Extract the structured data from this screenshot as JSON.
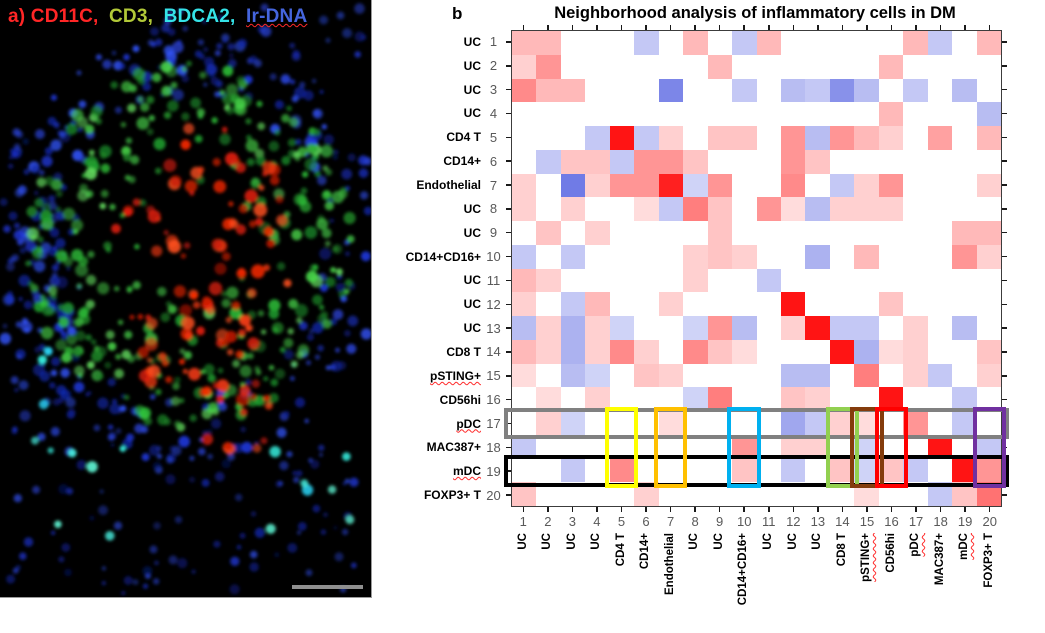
{
  "panel_a": {
    "label_parts": [
      {
        "text": "a) CD11C,",
        "color": "#ff2626",
        "squiggle": false
      },
      {
        "text": "CD3,",
        "color": "#b2c938",
        "squiggle": false
      },
      {
        "text": "BDCA2,",
        "color": "#35e3e8",
        "squiggle": false
      },
      {
        "text": "Ir-DNA",
        "color": "#4565dd",
        "squiggle": true
      }
    ],
    "scale_bar_color": "#8f8f8f"
  },
  "panel_b": {
    "panel_letter": "b",
    "title": "Neighborhood analysis of inflammatory cells in DM",
    "squiggled_labels": [
      "pSTING+",
      "pDC",
      "mDC"
    ],
    "highlights": {
      "row_boxes": [
        {
          "index": 17,
          "color": "#808080"
        },
        {
          "index": 19,
          "color": "#000000"
        }
      ],
      "col_boxes": [
        {
          "index": 5,
          "color": "#ffff00"
        },
        {
          "index": 7,
          "color": "#ffc000"
        },
        {
          "index": 10,
          "color": "#00b0f0"
        },
        {
          "index": 14,
          "color": "#92d050"
        },
        {
          "index": 15,
          "color": "#843c0c"
        },
        {
          "index": 16,
          "color": "#ff0000"
        },
        {
          "index": 20,
          "color": "#7030a0"
        }
      ]
    },
    "chart_data": {
      "type": "heatmap",
      "title": "Neighborhood analysis of inflammatory cells in DM",
      "x_categories": [
        "UC",
        "UC",
        "UC",
        "UC",
        "CD4 T",
        "CD14+",
        "Endothelial",
        "UC",
        "UC",
        "CD14+CD16+",
        "UC",
        "UC",
        "UC",
        "CD8 T",
        "pSTING+",
        "CD56hi",
        "pDC",
        "MAC387+",
        "mDC",
        "FOXP3+ T"
      ],
      "y_categories": [
        "UC",
        "UC",
        "UC",
        "UC",
        "CD4 T",
        "CD14+",
        "Endothelial",
        "UC",
        "UC",
        "CD14+CD16+",
        "UC",
        "UC",
        "UC",
        "CD8 T",
        "pSTING+",
        "CD56hi",
        "pDC",
        "MAC387+",
        "mDC",
        "FOXP3+ T"
      ],
      "x_ticks": [
        1,
        2,
        3,
        4,
        5,
        6,
        7,
        8,
        9,
        10,
        11,
        12,
        13,
        14,
        15,
        16,
        17,
        18,
        19,
        20
      ],
      "y_ticks": [
        1,
        2,
        3,
        4,
        5,
        6,
        7,
        8,
        9,
        10,
        11,
        12,
        13,
        14,
        15,
        16,
        17,
        18,
        19,
        20
      ],
      "value_range": [
        -1,
        1
      ],
      "colormap": {
        "positive": "red",
        "zero": "white",
        "negative": "blue"
      },
      "matrix": [
        [
          0.3,
          0.3,
          0,
          0,
          0,
          -0.25,
          0,
          0.3,
          0,
          -0.25,
          0.3,
          0,
          0,
          0,
          0,
          0,
          0.3,
          -0.25,
          0,
          0.3
        ],
        [
          0.2,
          0.45,
          0,
          0,
          0,
          0,
          0,
          0,
          0.3,
          0,
          0,
          0,
          0,
          0,
          0,
          0.3,
          0,
          0,
          0,
          0
        ],
        [
          0.5,
          0.3,
          0.3,
          0,
          0,
          0,
          -0.55,
          0,
          0,
          -0.25,
          0,
          -0.3,
          -0.25,
          -0.5,
          -0.3,
          0,
          -0.25,
          0,
          -0.3,
          0
        ],
        [
          0,
          0,
          0,
          0,
          0,
          0,
          0,
          0,
          0,
          0,
          0,
          0,
          0,
          0,
          0,
          0.3,
          0,
          0,
          0,
          -0.3
        ],
        [
          0,
          0,
          0,
          -0.25,
          1,
          -0.25,
          0.2,
          0,
          0.25,
          0.25,
          0,
          0.45,
          -0.3,
          0.45,
          0.3,
          0.2,
          0,
          0.4,
          0,
          0.3
        ],
        [
          0,
          -0.25,
          0.25,
          0.25,
          -0.25,
          0.45,
          0.45,
          0.25,
          0,
          0,
          0,
          0.45,
          0.25,
          0,
          0,
          0,
          0,
          0,
          0,
          0
        ],
        [
          0.2,
          0,
          -0.6,
          0.2,
          0.45,
          0.45,
          0.95,
          -0.2,
          0.45,
          0,
          0,
          0.5,
          0,
          -0.25,
          0.2,
          0.45,
          0,
          0,
          0,
          0.2
        ],
        [
          0.2,
          0,
          0.2,
          0,
          0,
          0.15,
          -0.25,
          0.55,
          0.25,
          0,
          0.45,
          0.15,
          -0.3,
          0.2,
          0.2,
          0.2,
          0,
          0,
          0,
          0
        ],
        [
          0,
          0.25,
          0,
          0.2,
          0,
          0,
          0,
          0,
          0.25,
          0,
          0,
          0,
          0,
          0,
          0,
          0,
          0,
          0,
          0.3,
          0.3
        ],
        [
          -0.25,
          0,
          -0.25,
          0,
          0,
          0,
          0,
          0.2,
          0.25,
          0.2,
          0,
          0,
          -0.35,
          0,
          0.3,
          0,
          0,
          0,
          0.45,
          0.2
        ],
        [
          0.3,
          0.2,
          0,
          0,
          0,
          0,
          0,
          0.2,
          0,
          0,
          -0.25,
          0,
          0,
          0,
          0,
          0,
          0,
          0,
          0,
          0
        ],
        [
          0.2,
          0,
          -0.25,
          0.3,
          0,
          0,
          0.2,
          0,
          0,
          0,
          0,
          1,
          0,
          0,
          0,
          0.25,
          0,
          0,
          0,
          0
        ],
        [
          -0.3,
          0.2,
          -0.35,
          0.2,
          -0.2,
          0,
          0,
          -0.2,
          0.45,
          -0.3,
          0,
          0.2,
          1,
          -0.25,
          -0.25,
          0,
          0.2,
          0,
          -0.3,
          0
        ],
        [
          0.3,
          0.2,
          -0.35,
          0.2,
          0.5,
          0.2,
          0,
          0.5,
          0.25,
          0.15,
          0,
          0,
          0,
          1,
          -0.35,
          0.15,
          0.2,
          0,
          0,
          0.25
        ],
        [
          0.15,
          0,
          -0.3,
          -0.2,
          0,
          0.25,
          0.2,
          0,
          0,
          0,
          0,
          -0.3,
          -0.3,
          0,
          0.55,
          0,
          0.2,
          -0.25,
          0,
          0.2
        ],
        [
          0,
          0.15,
          0,
          0.2,
          0,
          0,
          0,
          -0.2,
          0.55,
          0,
          0,
          0.25,
          0.2,
          0,
          0,
          1,
          0,
          0,
          -0.25,
          0
        ],
        [
          0,
          0.2,
          -0.2,
          0,
          0,
          0,
          0.15,
          0,
          0,
          0,
          0,
          -0.4,
          -0.25,
          0.2,
          0.15,
          0,
          0.45,
          0,
          -0.25,
          0
        ],
        [
          -0.25,
          0,
          0,
          0,
          0,
          0,
          0,
          0,
          0,
          0.45,
          0,
          0.2,
          0.2,
          0,
          -0.2,
          0,
          0,
          1,
          0,
          -0.25
        ],
        [
          0,
          0,
          -0.25,
          0,
          0.5,
          0,
          0,
          0,
          0,
          0.25,
          0,
          -0.25,
          0,
          0.25,
          -0.2,
          0.25,
          -0.25,
          0,
          1,
          0.45
        ],
        [
          0.25,
          0,
          0,
          0,
          0,
          0.2,
          0,
          0,
          0,
          0,
          0,
          0,
          0,
          0,
          0.15,
          0,
          0,
          -0.25,
          0.25,
          0.6
        ]
      ]
    }
  }
}
